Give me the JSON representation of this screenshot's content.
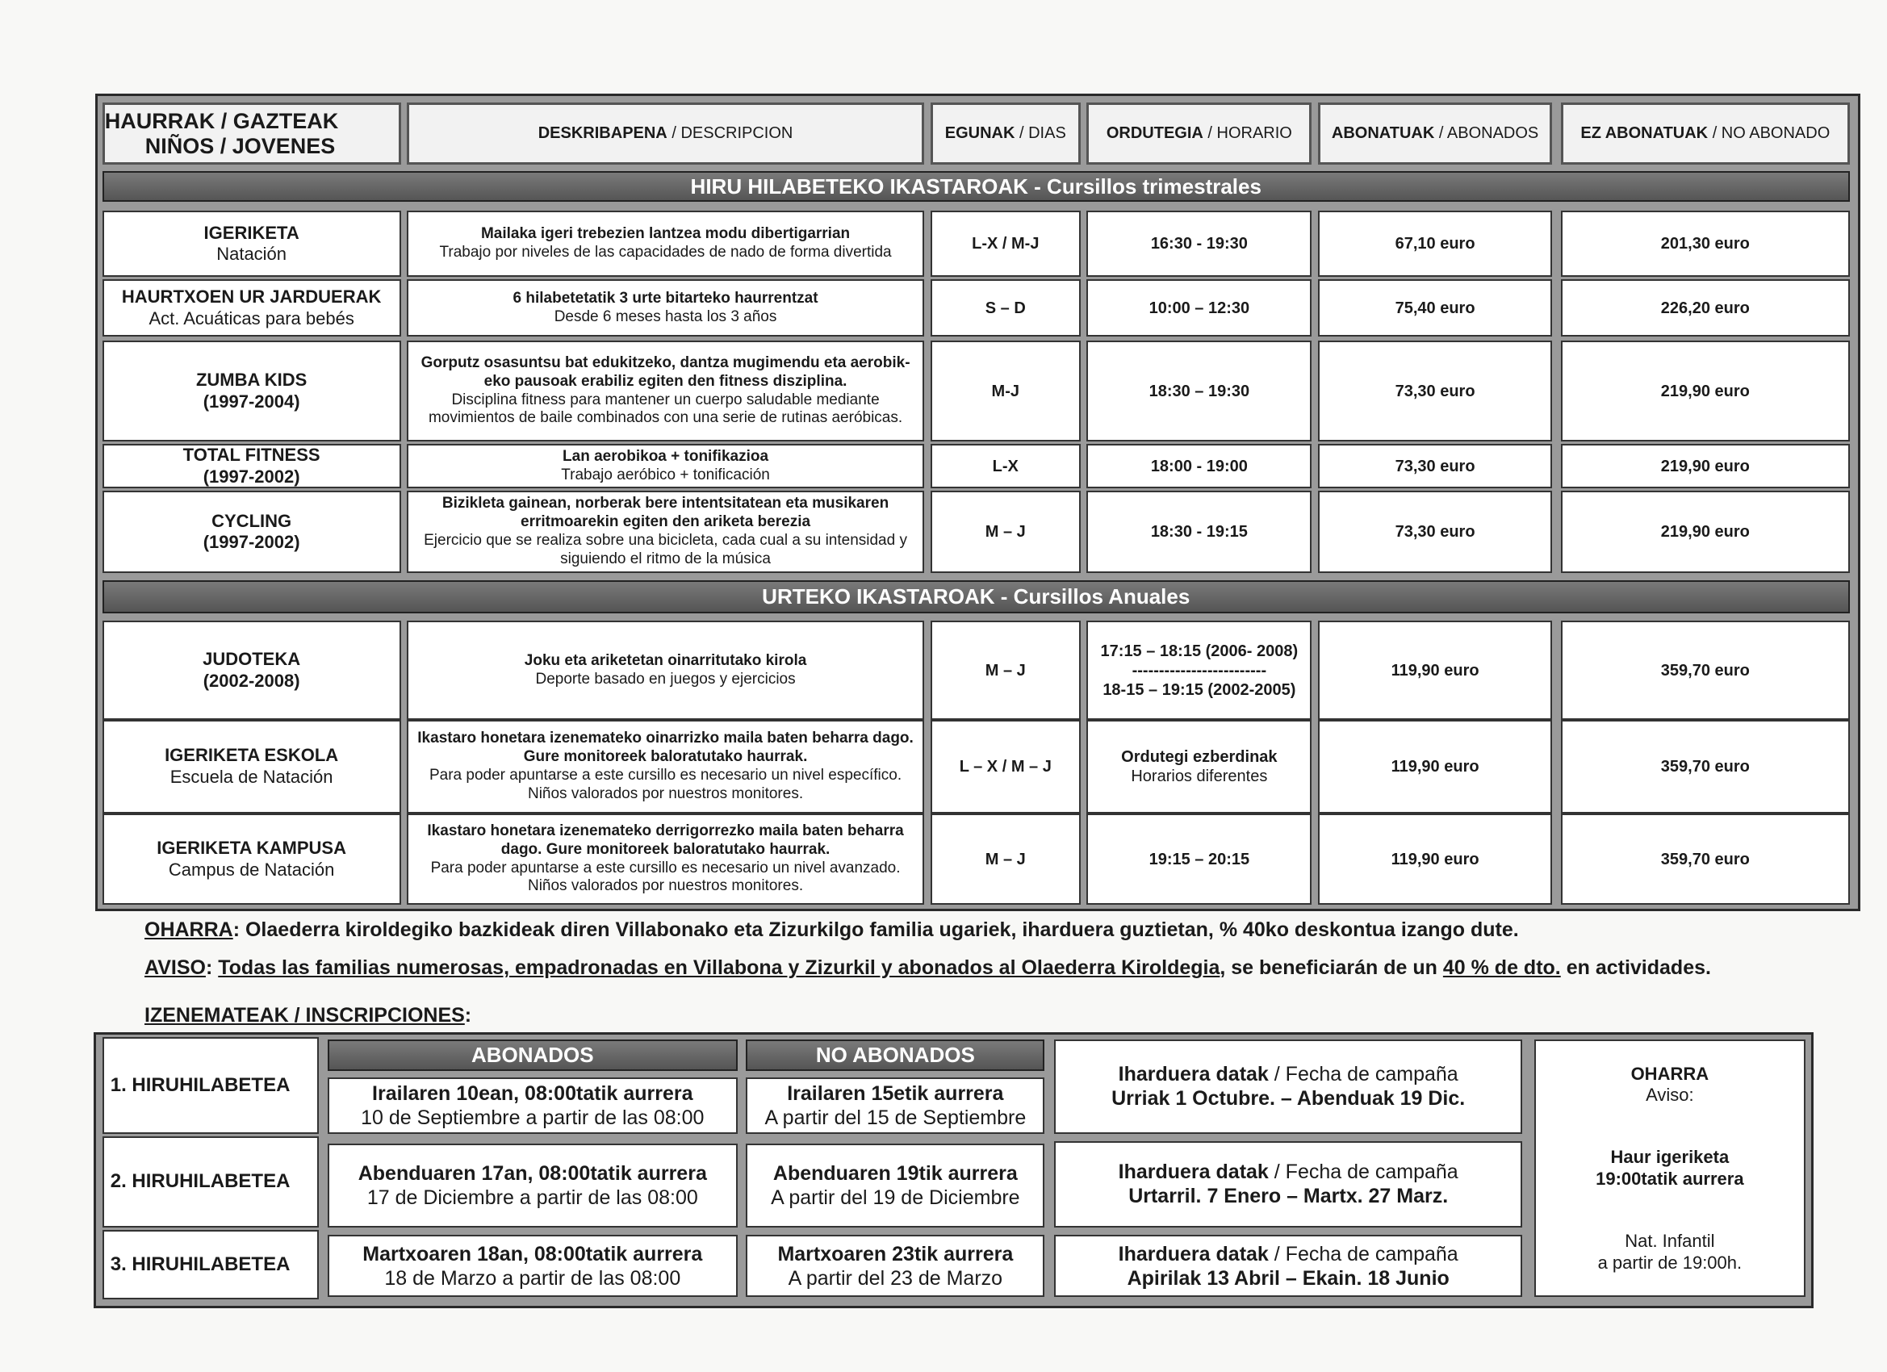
{
  "header": {
    "first": {
      "bold": [
        "HAURRAK / GAZTEAK",
        "NIÑOS / JOVENES"
      ]
    },
    "columns": [
      {
        "bold": "DESKRIBAPENA",
        "normal": "/ DESCRIPCION"
      },
      {
        "bold": "EGUNAK",
        "normal": "/ DIAS"
      },
      {
        "bold": "ORDUTEGIA",
        "normal": "/ HORARIO"
      },
      {
        "bold": "ABONATUAK",
        "normal": "/ ABONADOS"
      },
      {
        "bold": "EZ ABONATUAK",
        "normal": "/ NO ABONADO"
      }
    ]
  },
  "sections": [
    {
      "title": "HIRU HILABETEKO IKASTAROAK - Cursillos trimestrales",
      "rows": [
        {
          "name": {
            "bold": [
              "IGERIKETA"
            ],
            "normal": [
              "Natación"
            ]
          },
          "description": {
            "bold": [
              "Mailaka igeri trebezien lantzea modu dibertigarrian"
            ],
            "normal": [
              "Trabajo por niveles de las capacidades de nado de forma divertida"
            ]
          },
          "days": {
            "bold": [
              "L-X / M-J"
            ]
          },
          "time": {
            "bold": [
              "16:30 - 19:30"
            ]
          },
          "members": {
            "bold": [
              "67,10 euro"
            ]
          },
          "non_members": {
            "bold": [
              "201,30 euro"
            ]
          }
        },
        {
          "name": {
            "bold": [
              "HAURTXOEN UR JARDUERAK"
            ],
            "normal": [
              "Act. Acuáticas para bebés"
            ]
          },
          "description": {
            "bold": [
              "6 hilabetetatik 3 urte bitarteko haurrentzat"
            ],
            "normal": [
              "Desde 6 meses hasta los 3 años"
            ]
          },
          "days": {
            "bold": [
              "S – D"
            ]
          },
          "time": {
            "bold": [
              "10:00 – 12:30"
            ]
          },
          "members": {
            "bold": [
              "75,40 euro"
            ]
          },
          "non_members": {
            "bold": [
              "226,20 euro"
            ]
          }
        },
        {
          "name": {
            "bold": [
              "ZUMBA KIDS",
              "(1997-2004)"
            ]
          },
          "description": {
            "bold": [
              "Gorputz osasuntsu bat edukitzeko, dantza mugimendu eta aerobik-eko pausoak erabiliz egiten den fitness disziplina."
            ],
            "normal": [
              "Disciplina fitness para mantener un cuerpo saludable mediante movimientos de baile combinados con una serie de rutinas aeróbicas."
            ]
          },
          "days": {
            "bold": [
              "M-J"
            ]
          },
          "time": {
            "bold": [
              "18:30 – 19:30"
            ]
          },
          "members": {
            "bold": [
              "73,30 euro"
            ]
          },
          "non_members": {
            "bold": [
              "219,90 euro"
            ]
          }
        },
        {
          "name": {
            "bold": [
              "TOTAL FITNESS",
              "(1997-2002)"
            ]
          },
          "description": {
            "bold": [
              "Lan aerobikoa + tonifikazioa"
            ],
            "normal": [
              "Trabajo aeróbico + tonificación"
            ]
          },
          "days": {
            "bold": [
              "L-X"
            ]
          },
          "time": {
            "bold": [
              "18:00 - 19:00"
            ]
          },
          "members": {
            "bold": [
              "73,30 euro"
            ]
          },
          "non_members": {
            "bold": [
              "219,90 euro"
            ]
          }
        },
        {
          "name": {
            "bold": [
              "CYCLING",
              "(1997-2002)"
            ]
          },
          "description": {
            "bold": [
              "Bizikleta gainean, norberak bere intentsitatean eta musikaren erritmoarekin egiten den ariketa berezia"
            ],
            "normal": [
              "Ejercicio que se realiza sobre una bicicleta, cada cual a su intensidad y siguiendo el ritmo de la música"
            ]
          },
          "days": {
            "bold": [
              "M – J"
            ]
          },
          "time": {
            "bold": [
              "18:30 - 19:15"
            ]
          },
          "members": {
            "bold": [
              "73,30 euro"
            ]
          },
          "non_members": {
            "bold": [
              "219,90 euro"
            ]
          }
        }
      ]
    },
    {
      "title": "URTEKO IKASTAROAK - Cursillos Anuales",
      "rows": [
        {
          "name": {
            "bold": [
              "JUDOTEKA",
              "(2002-2008)"
            ]
          },
          "description": {
            "bold": [
              "Joku eta ariketetan oinarritutako kirola"
            ],
            "normal": [
              "Deporte basado en juegos y ejercicios"
            ]
          },
          "days": {
            "bold": [
              "M – J"
            ]
          },
          "time": {
            "bold": [
              "17:15 – 18:15 (2006- 2008)",
              "-------------------------",
              "18-15 – 19:15 (2002-2005)"
            ]
          },
          "members": {
            "bold": [
              "119,90 euro"
            ]
          },
          "non_members": {
            "bold": [
              "359,70 euro"
            ]
          }
        },
        {
          "name": {
            "bold": [
              "IGERIKETA ESKOLA"
            ],
            "normal": [
              "Escuela de Natación"
            ]
          },
          "description": {
            "bold": [
              "Ikastaro honetara izenemateko oinarrizko maila baten beharra dago. Gure monitoreek baloratutako haurrak."
            ],
            "normal": [
              "Para poder apuntarse a este cursillo es necesario un nivel específico. Niños valorados por nuestros monitores."
            ]
          },
          "days": {
            "bold": [
              "L – X / M – J"
            ]
          },
          "time": {
            "bold": [
              "Ordutegi ezberdinak"
            ],
            "normal": [
              "Horarios diferentes"
            ]
          },
          "members": {
            "bold": [
              "119,90 euro"
            ]
          },
          "non_members": {
            "bold": [
              "359,70 euro"
            ]
          }
        },
        {
          "name": {
            "bold": [
              "IGERIKETA KAMPUSA"
            ],
            "normal": [
              "Campus de Natación"
            ]
          },
          "description": {
            "bold": [
              "Ikastaro honetara izenemateko derrigorrezko maila baten beharra dago. Gure monitoreek baloratutako haurrak."
            ],
            "normal": [
              "Para poder apuntarse a este cursillo es necesario un nivel avanzado. Niños valorados por nuestros monitores."
            ]
          },
          "days": {
            "bold": [
              "M – J"
            ]
          },
          "time": {
            "bold": [
              "19:15 – 20:15"
            ]
          },
          "members": {
            "bold": [
              "119,90 euro"
            ]
          },
          "non_members": {
            "bold": [
              "359,70 euro"
            ]
          }
        }
      ]
    }
  ],
  "notes": [
    [
      {
        "text": "OHARRA",
        "underline": true
      },
      {
        "text": ": Olaederra kiroldegiko bazkideak diren Villabonako eta Zizurkilgo familia ugariek, iharduera guztietan, % 40ko deskontua izango dute."
      }
    ],
    [
      {
        "text": "AVISO",
        "underline": true
      },
      {
        "text": ": "
      },
      {
        "text": "Todas las familias numerosas, empadronadas en Villabona y Zizurkil y abonados al Olaederra Kiroldegia",
        "underline": true
      },
      {
        "text": ", se beneficiarán de un "
      },
      {
        "text": "40 % de dto.",
        "underline": true
      },
      {
        "text": " en actividades."
      }
    ],
    [
      {
        "text": "IZENEMATEAK / INSCRIPCIONES",
        "underline": true
      },
      {
        "text": ":"
      }
    ]
  ],
  "inscriptions": {
    "headers": [
      "ABONADOS",
      "NO ABONADOS"
    ],
    "rows": [
      {
        "period": "1. HIRUHILABETEA",
        "members": {
          "bold": [
            "Irailaren 10ean, 08:00tatik aurrera"
          ],
          "normal": [
            "10 de Septiembre a partir de las 08:00"
          ]
        },
        "non_members": {
          "bold": [
            "Irailaren 15etik aurrera"
          ],
          "normal": [
            "A partir del 15 de Septiembre"
          ]
        },
        "campaign": {
          "label_bold": "Iharduera datak",
          "label": "/ Fecha de campaña",
          "dates": "Urriak 1 Octubre. – Abenduak 19 Dic."
        }
      },
      {
        "period": "2. HIRUHILABETEA",
        "members": {
          "bold": [
            "Abenduaren 17an, 08:00tatik aurrera"
          ],
          "normal": [
            "17 de Diciembre a partir de las 08:00"
          ]
        },
        "non_members": {
          "bold": [
            "Abenduaren 19tik aurrera"
          ],
          "normal": [
            "A partir del 19 de Diciembre"
          ]
        },
        "campaign": {
          "label_bold": "Iharduera datak",
          "label": "/ Fecha de campaña",
          "dates": "Urtarril. 7 Enero – Martx. 27 Marz."
        }
      },
      {
        "period": "3. HIRUHILABETEA",
        "members": {
          "bold": [
            "Martxoaren 18an, 08:00tatik aurrera"
          ],
          "normal": [
            "18 de Marzo a partir de las 08:00"
          ]
        },
        "non_members": {
          "bold": [
            "Martxoaren 23tik aurrera"
          ],
          "normal": [
            "A partir del 23 de Marzo"
          ]
        },
        "campaign": {
          "label_bold": "Iharduera datak",
          "label": "/ Fecha de campaña",
          "dates": "Apirilak 13 Abril – Ekain. 18 Junio"
        }
      }
    ],
    "note": {
      "title": "OHARRA",
      "subtitle": "Aviso:",
      "bold": [
        "Haur igeriketa",
        "19:00tatik aurrera"
      ],
      "normal": [
        "Nat. Infantil",
        "a partir de 19:00h."
      ]
    }
  }
}
